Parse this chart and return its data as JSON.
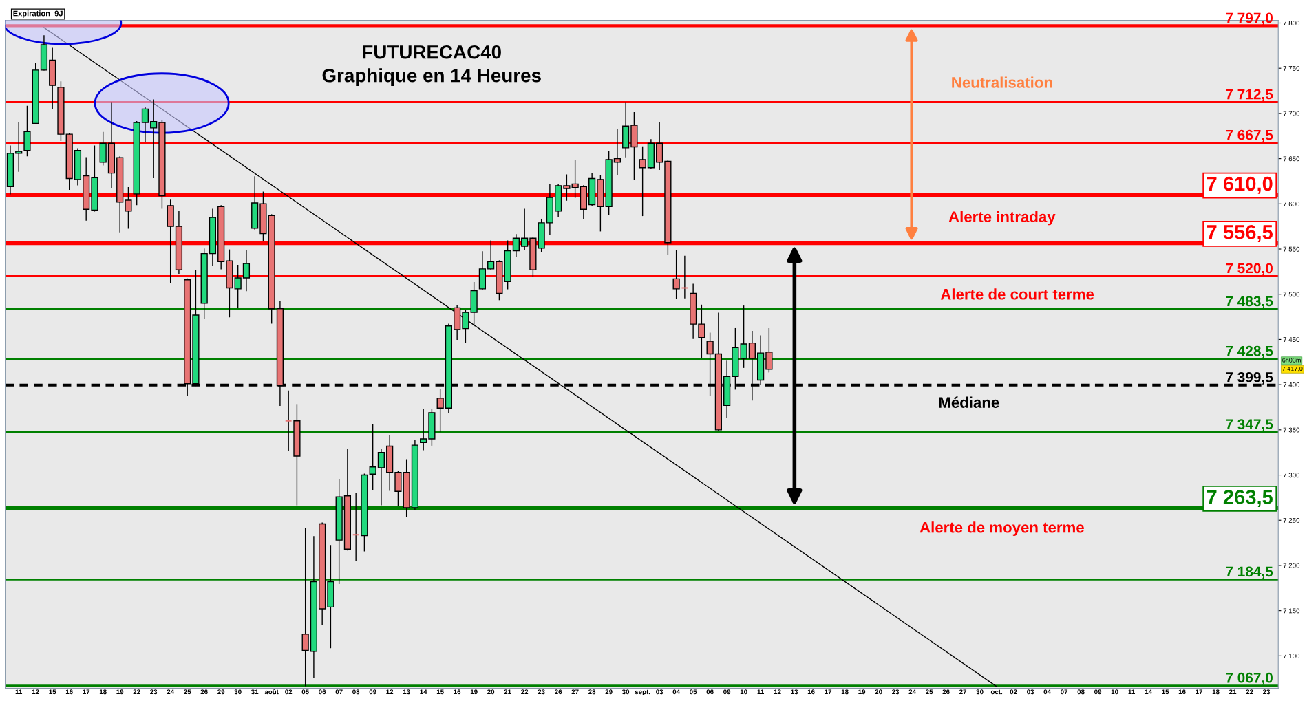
{
  "chart_data": {
    "type": "candlestick",
    "title": "FUTURECAC40",
    "subtitle": "Graphique en 14 Heures",
    "categories": [
      null,
      "11",
      null,
      "12",
      null,
      "15",
      null,
      "16",
      null,
      "17",
      null,
      "18",
      null,
      "19",
      null,
      "22",
      null,
      "23",
      null,
      "24",
      null,
      "25",
      null,
      "26",
      null,
      "29",
      null,
      "30",
      null,
      "31",
      null,
      "août",
      null,
      "02",
      null,
      "05",
      null,
      "06",
      null,
      "07",
      null,
      "08",
      null,
      "09",
      null,
      "12",
      null,
      "13",
      null,
      "14",
      null,
      "15",
      null,
      "16",
      null,
      "19",
      null,
      "20",
      null,
      "21",
      null,
      "22",
      null,
      "23",
      null,
      "26",
      null,
      "27",
      null,
      "28",
      null,
      "29",
      null,
      "30",
      null,
      "sept.",
      null,
      "03",
      null,
      "04",
      null,
      "05",
      null,
      "06",
      null,
      "09",
      null,
      "10",
      null,
      "11",
      null,
      "12",
      null,
      "13",
      null,
      "16",
      null,
      "17",
      null,
      "18",
      null,
      "19",
      null,
      "20",
      null,
      "23",
      null,
      "24",
      null,
      "25",
      null,
      "26",
      null,
      "27",
      null,
      "30",
      null,
      "oct.",
      null,
      "02",
      null,
      "03",
      null,
      "04",
      null,
      "07",
      null,
      "08",
      null,
      "09",
      null,
      "10",
      null,
      "11",
      null,
      "14",
      null,
      "15",
      null,
      "16",
      null,
      "17",
      null,
      "18",
      null,
      "21",
      null,
      "22",
      null,
      "23",
      null
    ],
    "ohlc": [
      [
        7619,
        7664,
        7611,
        7656
      ],
      [
        7656,
        7690,
        7636,
        7658
      ],
      [
        7659,
        7708,
        7653,
        7680
      ],
      [
        7689,
        7755,
        7689,
        7748
      ],
      [
        7748,
        7786,
        7748,
        7776
      ],
      [
        7759,
        7772,
        7705,
        7731
      ],
      [
        7729,
        7735,
        7670,
        7677
      ],
      [
        7677,
        7678,
        7616,
        7628
      ],
      [
        7627,
        7661,
        7621,
        7659
      ],
      [
        7631,
        7651,
        7582,
        7594
      ],
      [
        7593,
        7664,
        7592,
        7629
      ],
      [
        7646,
        7679,
        7643,
        7667
      ],
      [
        7667,
        7712,
        7618,
        7634
      ],
      [
        7651,
        7652,
        7569,
        7602
      ],
      [
        7604,
        7618,
        7573,
        7592
      ],
      [
        7611,
        7691,
        7599,
        7690
      ],
      [
        7690,
        7707,
        7669,
        7705
      ],
      [
        7684,
        7715,
        7629,
        7691
      ],
      [
        7690,
        7692,
        7595,
        7609
      ],
      [
        7598,
        7604,
        7513,
        7575
      ],
      [
        7575,
        7592,
        7523,
        7527
      ],
      [
        7516,
        7517,
        7388,
        7401
      ],
      [
        7401,
        7526,
        7399,
        7477
      ],
      [
        7490,
        7550,
        7473,
        7545
      ],
      [
        7545,
        7594,
        7532,
        7585
      ],
      [
        7597,
        7598,
        7528,
        7536
      ],
      [
        7537,
        7549,
        7475,
        7507
      ],
      [
        7506,
        7532,
        7485,
        7518
      ],
      [
        7518,
        7548,
        7504,
        7534
      ],
      [
        7573,
        7630,
        7572,
        7601
      ],
      [
        7600,
        7613,
        7559,
        7567
      ],
      [
        7587,
        7588,
        7468,
        7484
      ],
      [
        7484,
        7492,
        7377,
        7399
      ],
      [
        7360,
        7393,
        7327,
        7360
      ],
      [
        7360,
        7378,
        7267,
        7321
      ],
      [
        7124,
        7241,
        7067,
        7106
      ],
      [
        7105,
        7232,
        7076,
        7182
      ],
      [
        7246,
        7247,
        7135,
        7152
      ],
      [
        7154,
        7222,
        7109,
        7182
      ],
      [
        7228,
        7295,
        7180,
        7276
      ],
      [
        7277,
        7328,
        7217,
        7218
      ],
      [
        7234,
        7280,
        7205,
        7234
      ],
      [
        7233,
        7301,
        7216,
        7300
      ],
      [
        7301,
        7356,
        7284,
        7309
      ],
      [
        7308,
        7328,
        7267,
        7325
      ],
      [
        7332,
        7344,
        7283,
        7303
      ],
      [
        7303,
        7304,
        7266,
        7282
      ],
      [
        7303,
        7317,
        7254,
        7264
      ],
      [
        7264,
        7338,
        7262,
        7333
      ],
      [
        7336,
        7373,
        7328,
        7340
      ],
      [
        7340,
        7373,
        7333,
        7369
      ],
      [
        7385,
        7395,
        7348,
        7374
      ],
      [
        7374,
        7467,
        7369,
        7465
      ],
      [
        7485,
        7487,
        7450,
        7461
      ],
      [
        7462,
        7482,
        7447,
        7480
      ],
      [
        7480,
        7513,
        7465,
        7504
      ],
      [
        7506,
        7547,
        7505,
        7528
      ],
      [
        7528,
        7559,
        7527,
        7536
      ],
      [
        7536,
        7537,
        7494,
        7501
      ],
      [
        7514,
        7559,
        7506,
        7548
      ],
      [
        7548,
        7566,
        7542,
        7562
      ],
      [
        7553,
        7594,
        7549,
        7562
      ],
      [
        7562,
        7563,
        7520,
        7527
      ],
      [
        7551,
        7583,
        7547,
        7579
      ],
      [
        7579,
        7621,
        7566,
        7607
      ],
      [
        7592,
        7621,
        7586,
        7620
      ],
      [
        7620,
        7632,
        7604,
        7617
      ],
      [
        7622,
        7648,
        7607,
        7618
      ],
      [
        7619,
        7620,
        7584,
        7594
      ],
      [
        7599,
        7634,
        7598,
        7628
      ],
      [
        7627,
        7631,
        7570,
        7597
      ],
      [
        7597,
        7658,
        7588,
        7649
      ],
      [
        7650,
        7682,
        7632,
        7646
      ],
      [
        7662,
        7712,
        7652,
        7686
      ],
      [
        7687,
        7701,
        7627,
        7663
      ],
      [
        7649,
        7663,
        7587,
        7640
      ],
      [
        7640,
        7671,
        7639,
        7667
      ],
      [
        7667,
        7690,
        7638,
        7646
      ],
      [
        7647,
        7648,
        7544,
        7557
      ],
      [
        7517,
        7548,
        7495,
        7506
      ],
      [
        7507,
        7542,
        7496,
        7507
      ],
      [
        7501,
        7511,
        7451,
        7467
      ],
      [
        7467,
        7488,
        7430,
        7452
      ],
      [
        7448,
        7457,
        7388,
        7434
      ],
      [
        7434,
        7479,
        7349,
        7350
      ],
      [
        7377,
        7426,
        7364,
        7409
      ],
      [
        7409,
        7462,
        7395,
        7441
      ],
      [
        7429,
        7487,
        7419,
        7445
      ],
      [
        7446,
        7459,
        7383,
        7429
      ],
      [
        7405,
        7454,
        7400,
        7435
      ],
      [
        7436,
        7462,
        7414,
        7417
      ],
      null,
      null,
      null,
      null,
      null,
      null,
      null,
      null,
      null,
      null,
      null,
      null,
      null,
      null,
      null,
      null,
      null,
      null,
      null,
      null,
      null,
      null,
      null,
      null,
      null,
      null,
      null,
      null,
      null,
      null,
      null,
      null,
      null,
      null,
      null,
      null,
      null,
      null,
      null,
      null,
      null,
      null,
      null,
      null,
      null,
      null,
      null,
      null,
      null,
      null,
      null,
      null,
      null,
      null,
      null,
      null,
      null,
      null,
      null,
      null
    ],
    "colors": [
      "#22d97e",
      "#22d97e",
      "#22d97e",
      "#22d97e",
      "#22d97e",
      "#e87474",
      "#e87474",
      "#e87474",
      "#22d97e",
      "#e87474",
      "#22d97e",
      "#22d97e",
      "#e87474",
      "#e87474",
      "#e87474",
      "#22d97e",
      "#22d97e",
      "#22d97e",
      "#e87474",
      "#e87474",
      "#e87474",
      "#e87474",
      "#22d97e",
      "#22d97e",
      "#22d97e",
      "#e87474",
      "#e87474",
      "#22d97e",
      "#22d97e",
      "#22d97e",
      "#e87474",
      "#e87474",
      "#e87474",
      "#e87474",
      "#e87474",
      "#e87474",
      "#22d97e",
      "#e87474",
      "#22d97e",
      "#22d97e",
      "#e87474",
      "#e87474",
      "#22d97e",
      "#22d97e",
      "#22d97e",
      "#e87474",
      "#e87474",
      "#e87474",
      "#22d97e",
      "#22d97e",
      "#22d97e",
      "#e87474",
      "#22d97e",
      "#e87474",
      "#22d97e",
      "#22d97e",
      "#22d97e",
      "#22d97e",
      "#e87474",
      "#22d97e",
      "#22d97e",
      "#22d97e",
      "#e87474",
      "#22d97e",
      "#22d97e",
      "#22d97e",
      "#e87474",
      "#e87474",
      "#e87474",
      "#22d97e",
      "#e87474",
      "#22d97e",
      "#e87474",
      "#22d97e",
      "#e87474",
      "#e87474",
      "#22d97e",
      "#e87474",
      "#e87474",
      "#e87474",
      "#e87474",
      "#e87474",
      "#e87474",
      "#e87474",
      "#e87474",
      "#22d97e",
      "#22d97e",
      "#22d97e",
      "#e87474",
      "#22d97e",
      "#e87474",
      null,
      null,
      null,
      null,
      null,
      null,
      null,
      null,
      null,
      null,
      null,
      null,
      null,
      null,
      null,
      null,
      null,
      null,
      null,
      null,
      null,
      null,
      null,
      null,
      null,
      null,
      null,
      null,
      null,
      null,
      null,
      null,
      null,
      null,
      null,
      null,
      null,
      null,
      null,
      null,
      null,
      null,
      null,
      null,
      null,
      null,
      null,
      null,
      null,
      null,
      null,
      null,
      null,
      null,
      null,
      null,
      null,
      null,
      null,
      null
    ],
    "series": [
      {
        "type": "line",
        "color": "#000000",
        "values": [
          null,
          null,
          null,
          null,
          7795,
          null,
          null,
          null,
          null,
          null,
          null,
          null,
          null,
          null,
          null,
          null,
          null,
          null,
          null,
          null,
          null,
          null,
          null,
          null,
          null,
          null,
          null,
          null,
          null,
          null,
          null,
          null,
          null,
          null,
          null,
          null,
          null,
          null,
          null,
          null,
          null,
          null,
          null,
          null,
          null,
          null,
          null,
          null,
          null,
          null,
          null,
          null,
          null,
          null,
          null,
          null,
          null,
          null,
          null,
          null,
          null,
          null,
          null,
          null,
          null,
          null,
          null,
          null,
          null,
          null,
          null,
          null,
          null,
          null,
          null,
          null,
          null,
          null,
          null,
          null,
          null,
          null,
          null,
          null,
          null,
          null,
          null,
          null,
          null,
          null,
          null,
          null,
          null,
          null,
          null,
          null,
          null,
          null,
          null,
          null,
          null,
          null,
          null,
          null,
          null,
          null,
          null,
          null,
          null,
          null,
          null,
          null,
          null,
          null,
          null,
          null,
          null,
          7066,
          null,
          null,
          null,
          null,
          null,
          null,
          null,
          null,
          null,
          null,
          null,
          null,
          null,
          null,
          null,
          null,
          null,
          null,
          null,
          null,
          null,
          null,
          null,
          null,
          null,
          null,
          null,
          null,
          null,
          null,
          null,
          null,
          null
        ]
      }
    ],
    "ref_lines": [
      {
        "axis": "y",
        "value": 7797,
        "label": "7 797,0",
        "color": "#ff0000"
      },
      {
        "axis": "y",
        "value": 7712.5,
        "label": "7 712,5",
        "color": "#ff0000"
      },
      {
        "axis": "y",
        "value": 7667.5,
        "label": "7 667,5",
        "color": "#ff0000"
      },
      {
        "axis": "y",
        "value": 7610,
        "label": "7 610,0",
        "color": "#ff0000"
      },
      {
        "axis": "y",
        "value": 7556.5,
        "label": "7 556,5",
        "color": "#ff0000"
      },
      {
        "axis": "y",
        "value": 7520,
        "label": "7 520,0",
        "color": "#ff0000"
      },
      {
        "axis": "y",
        "value": 7483.5,
        "label": "7 483,5",
        "color": "#008000"
      },
      {
        "axis": "y",
        "value": 7428.5,
        "label": "7 428,5",
        "color": "#008000"
      },
      {
        "axis": "y",
        "value": 7399.5,
        "label": "7 399,5",
        "color": "#000000",
        "line_style": "dashed"
      },
      {
        "axis": "y",
        "value": 7347.5,
        "label": "7 347,5",
        "color": "#008000"
      },
      {
        "axis": "y",
        "value": 7263.5,
        "label": "7 263,5",
        "color": "#008000"
      },
      {
        "axis": "y",
        "value": 7184.5,
        "label": "7 184,5",
        "color": "#008000"
      },
      {
        "axis": "y",
        "value": 7067,
        "label": "7 067,0",
        "color": "#008000"
      }
    ],
    "annotations": [
      "Neutralisation",
      "Alerte intraday",
      "Alerte de court terme",
      "Médiane",
      "Alerte de moyen terme",
      "Expiration  9J",
      "7 417,0",
      "6h03m"
    ],
    "ylim": [
      7064,
      7803
    ],
    "yticks": [
      {
        "value": 7100,
        "label": "7 100"
      },
      {
        "value": 7150,
        "label": "7 150"
      },
      {
        "value": 7200,
        "label": "7 200"
      },
      {
        "value": 7250,
        "label": "7 250"
      },
      {
        "value": 7300,
        "label": "7 300"
      },
      {
        "value": 7350,
        "label": "7 350"
      },
      {
        "value": 7400,
        "label": "7 400"
      },
      {
        "value": 7450,
        "label": "7 450"
      },
      {
        "value": 7500,
        "label": "7 500"
      },
      {
        "value": 7550,
        "label": "7 550"
      },
      {
        "value": 7600,
        "label": "7 600"
      },
      {
        "value": 7650,
        "label": "7 650"
      },
      {
        "value": 7700,
        "label": "7 700"
      },
      {
        "value": 7750,
        "label": "7 750"
      },
      {
        "value": 7800,
        "label": "7 800"
      }
    ],
    "grid": false,
    "legend": false
  }
}
